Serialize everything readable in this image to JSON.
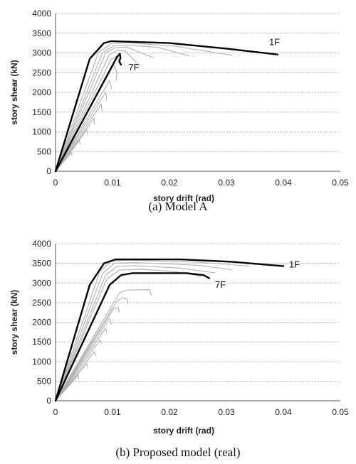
{
  "chart_data": [
    {
      "type": "line",
      "caption": "(a)  Model  A",
      "xlabel": "story drift (rad)",
      "ylabel": "story shear (kN)",
      "xlim": [
        0,
        0.05
      ],
      "ylim": [
        0,
        4000
      ],
      "xticks": [
        "0",
        "0.01",
        "0.02",
        "0.03",
        "0.04",
        "0.05"
      ],
      "yticks": [
        "0",
        "500",
        "1000",
        "1500",
        "2000",
        "2500",
        "3000",
        "3500",
        "4000"
      ],
      "grid": "horizontal dashed",
      "annotations": [
        {
          "text": "1F",
          "x": 0.0375,
          "y": 3200
        },
        {
          "text": "7F",
          "x": 0.0128,
          "y": 2560
        }
      ],
      "series": [
        {
          "color": "#000000",
          "width": 2.4,
          "points": [
            [
              0,
              0
            ],
            [
              0.006,
              2850
            ],
            [
              0.0085,
              3250
            ],
            [
              0.0098,
              3300
            ],
            [
              0.02,
              3250
            ],
            [
              0.03,
              3110
            ],
            [
              0.039,
              2960
            ]
          ]
        },
        {
          "color": "#000000",
          "width": 2.4,
          "points": [
            [
              0,
              0
            ],
            [
              0.0108,
              2900
            ],
            [
              0.0113,
              2980
            ],
            [
              0.0114,
              2880
            ],
            [
              0.0112,
              2780
            ],
            [
              0.0115,
              2700
            ]
          ]
        },
        {
          "color": "#b0b0b0",
          "width": 1.1,
          "points": [
            [
              0,
              0
            ],
            [
              0.0075,
              3000
            ],
            [
              0.0098,
              3240
            ],
            [
              0.0125,
              3260
            ],
            [
              0.021,
              3170
            ],
            [
              0.031,
              2940
            ]
          ]
        },
        {
          "color": "#b0b0b0",
          "width": 1.1,
          "points": [
            [
              0,
              0
            ],
            [
              0.0082,
              3000
            ],
            [
              0.0102,
              3180
            ],
            [
              0.013,
              3200
            ],
            [
              0.018,
              3140
            ],
            [
              0.0235,
              2920
            ]
          ]
        },
        {
          "color": "#b0b0b0",
          "width": 1.1,
          "points": [
            [
              0,
              0
            ],
            [
              0.0088,
              3000
            ],
            [
              0.0105,
              3130
            ],
            [
              0.0125,
              3150
            ],
            [
              0.0172,
              2880
            ]
          ]
        },
        {
          "color": "#b0b0b0",
          "width": 1.1,
          "points": [
            [
              0,
              0
            ],
            [
              0.0094,
              2950
            ],
            [
              0.0108,
              3060
            ],
            [
              0.0122,
              3050
            ],
            [
              0.0142,
              2760
            ]
          ]
        },
        {
          "color": "#b0b0b0",
          "width": 1.1,
          "points": [
            [
              0,
              0
            ],
            [
              0.0098,
              2850
            ],
            [
              0.0108,
              2920
            ],
            [
              0.0115,
              2720
            ]
          ]
        },
        {
          "color": "#b0b0b0",
          "width": 1.1,
          "points": [
            [
              0,
              0
            ],
            [
              0.0102,
              2700
            ],
            [
              0.0108,
              2500
            ],
            [
              0.0106,
              2300
            ]
          ]
        },
        {
          "color": "#b0b0b0",
          "width": 1.1,
          "points": [
            [
              0,
              0
            ],
            [
              0.0095,
              2300
            ],
            [
              0.0098,
              2100
            ]
          ]
        },
        {
          "color": "#b0b0b0",
          "width": 1.1,
          "points": [
            [
              0,
              0
            ],
            [
              0.0088,
              2000
            ],
            [
              0.009,
              1800
            ]
          ]
        },
        {
          "color": "#b0b0b0",
          "width": 1.1,
          "points": [
            [
              0,
              0
            ],
            [
              0.008,
              1700
            ],
            [
              0.0082,
              1500
            ]
          ]
        },
        {
          "color": "#b0b0b0",
          "width": 1.1,
          "points": [
            [
              0,
              0
            ],
            [
              0.0068,
              1350
            ],
            [
              0.0068,
              1200
            ]
          ]
        },
        {
          "color": "#b0b0b0",
          "width": 1.1,
          "points": [
            [
              0,
              0
            ],
            [
              0.0055,
              1050
            ],
            [
              0.0056,
              950
            ]
          ]
        },
        {
          "color": "#b0b0b0",
          "width": 1.1,
          "points": [
            [
              0,
              0
            ],
            [
              0.0042,
              780
            ],
            [
              0.0043,
              680
            ]
          ]
        },
        {
          "color": "#b0b0b0",
          "width": 1.1,
          "points": [
            [
              0,
              0
            ],
            [
              0.0028,
              480
            ],
            [
              0.0029,
              400
            ]
          ]
        }
      ]
    },
    {
      "type": "line",
      "caption": "(b)  Proposed  model  (real)",
      "xlabel": "story drift (rad)",
      "ylabel": "story shear (kN)",
      "xlim": [
        0,
        0.05
      ],
      "ylim": [
        0,
        4000
      ],
      "xticks": [
        "0",
        "0.01",
        "0.02",
        "0.03",
        "0.04",
        "0.05"
      ],
      "yticks": [
        "0",
        "500",
        "1000",
        "1500",
        "2000",
        "2500",
        "3000",
        "3500",
        "4000"
      ],
      "grid": "horizontal dashed",
      "annotations": [
        {
          "text": "1F",
          "x": 0.041,
          "y": 3390
        },
        {
          "text": "7F",
          "x": 0.028,
          "y": 2880
        }
      ],
      "series": [
        {
          "color": "#000000",
          "width": 2.4,
          "points": [
            [
              0,
              0
            ],
            [
              0.006,
              2950
            ],
            [
              0.0085,
              3500
            ],
            [
              0.0105,
              3600
            ],
            [
              0.022,
              3600
            ],
            [
              0.031,
              3540
            ],
            [
              0.04,
              3430
            ]
          ]
        },
        {
          "color": "#000000",
          "width": 2.4,
          "points": [
            [
              0,
              0
            ],
            [
              0.0095,
              2950
            ],
            [
              0.0115,
              3200
            ],
            [
              0.0135,
              3250
            ],
            [
              0.023,
              3250
            ],
            [
              0.026,
              3200
            ],
            [
              0.027,
              3120
            ]
          ]
        },
        {
          "color": "#b0b0b0",
          "width": 1.1,
          "points": [
            [
              0,
              0
            ],
            [
              0.0078,
              3300
            ],
            [
              0.0098,
              3560
            ],
            [
              0.013,
              3580
            ],
            [
              0.025,
              3530
            ],
            [
              0.034,
              3430
            ]
          ]
        },
        {
          "color": "#b0b0b0",
          "width": 1.1,
          "points": [
            [
              0,
              0
            ],
            [
              0.0083,
              3250
            ],
            [
              0.0103,
              3500
            ],
            [
              0.014,
              3520
            ],
            [
              0.025,
              3450
            ],
            [
              0.031,
              3340
            ]
          ]
        },
        {
          "color": "#b0b0b0",
          "width": 1.1,
          "points": [
            [
              0,
              0
            ],
            [
              0.0088,
              3200
            ],
            [
              0.0108,
              3420
            ],
            [
              0.014,
              3440
            ],
            [
              0.022,
              3380
            ],
            [
              0.028,
              3260
            ]
          ]
        },
        {
          "color": "#b0b0b0",
          "width": 1.1,
          "points": [
            [
              0,
              0
            ],
            [
              0.009,
              3100
            ],
            [
              0.0112,
              3330
            ],
            [
              0.015,
              3350
            ],
            [
              0.021,
              3290
            ],
            [
              0.0255,
              3170
            ]
          ]
        },
        {
          "color": "#b0b0b0",
          "width": 1.1,
          "points": [
            [
              0,
              0
            ],
            [
              0.0112,
              2750
            ],
            [
              0.0125,
              2820
            ],
            [
              0.0165,
              2830
            ],
            [
              0.0168,
              2680
            ]
          ]
        },
        {
          "color": "#b0b0b0",
          "width": 1.1,
          "points": [
            [
              0,
              0
            ],
            [
              0.0108,
              2550
            ],
            [
              0.0118,
              2620
            ],
            [
              0.0125,
              2600
            ],
            [
              0.0127,
              2480
            ]
          ]
        },
        {
          "color": "#b0b0b0",
          "width": 1.1,
          "points": [
            [
              0,
              0
            ],
            [
              0.0102,
              2350
            ],
            [
              0.011,
              2380
            ],
            [
              0.0112,
              2250
            ]
          ]
        },
        {
          "color": "#b0b0b0",
          "width": 1.1,
          "points": [
            [
              0,
              0
            ],
            [
              0.0095,
              2100
            ],
            [
              0.0098,
              1950
            ]
          ]
        },
        {
          "color": "#b0b0b0",
          "width": 1.1,
          "points": [
            [
              0,
              0
            ],
            [
              0.0088,
              1850
            ],
            [
              0.009,
              1720
            ]
          ]
        },
        {
          "color": "#b0b0b0",
          "width": 1.1,
          "points": [
            [
              0,
              0
            ],
            [
              0.0078,
              1550
            ],
            [
              0.008,
              1450
            ]
          ]
        },
        {
          "color": "#b0b0b0",
          "width": 1.1,
          "points": [
            [
              0,
              0
            ],
            [
              0.0068,
              1250
            ],
            [
              0.007,
              1150
            ]
          ]
        },
        {
          "color": "#b0b0b0",
          "width": 1.1,
          "points": [
            [
              0,
              0
            ],
            [
              0.0055,
              950
            ],
            [
              0.0056,
              850
            ]
          ]
        },
        {
          "color": "#b0b0b0",
          "width": 1.1,
          "points": [
            [
              0,
              0
            ],
            [
              0.004,
              650
            ],
            [
              0.0041,
              560
            ]
          ]
        }
      ]
    }
  ]
}
